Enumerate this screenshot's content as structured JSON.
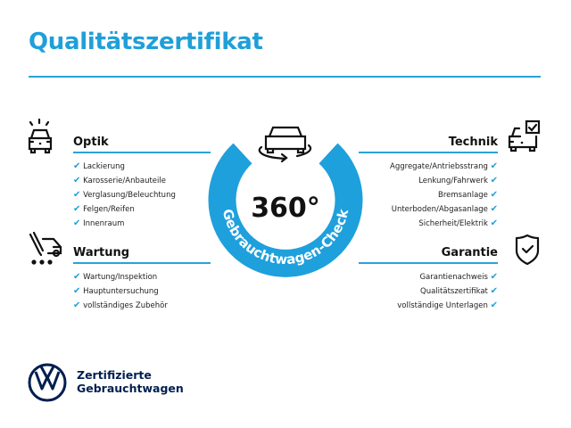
{
  "title": "Qualitätszertifikat",
  "center": {
    "value": "360°",
    "ring_text": "Gebrauchtwagen-Check",
    "ring_color": "#1ea0dc"
  },
  "sections": {
    "optik": {
      "heading": "Optik",
      "icon": "car-lights-icon",
      "items": [
        "Lackierung",
        "Karosserie/Anbauteile",
        "Verglasung/Beleuchtung",
        "Felgen/Reifen",
        "Innenraum"
      ]
    },
    "wartung": {
      "heading": "Wartung",
      "icon": "service-tools-car-icon",
      "items": [
        "Wartung/Inspektion",
        "Hauptuntersuchung",
        "vollständiges Zubehör"
      ]
    },
    "technik": {
      "heading": "Technik",
      "icon": "car-checkbox-icon",
      "items": [
        "Aggregate/Antriebsstrang",
        "Lenkung/Fahrwerk",
        "Bremsanlage",
        "Unterboden/Abgasanlage",
        "Sicherheit/Elektrik"
      ]
    },
    "garantie": {
      "heading": "Garantie",
      "icon": "shield-check-icon",
      "items": [
        "Garantienachweis",
        "Qualitätszertifikat",
        "vollständige Unterlagen"
      ]
    }
  },
  "check_mark": "✔",
  "brand": {
    "line1": "Zertifizierte",
    "line2": "Gebrauchtwagen",
    "logo": "vw-logo"
  },
  "accent": "#1f9fd9"
}
